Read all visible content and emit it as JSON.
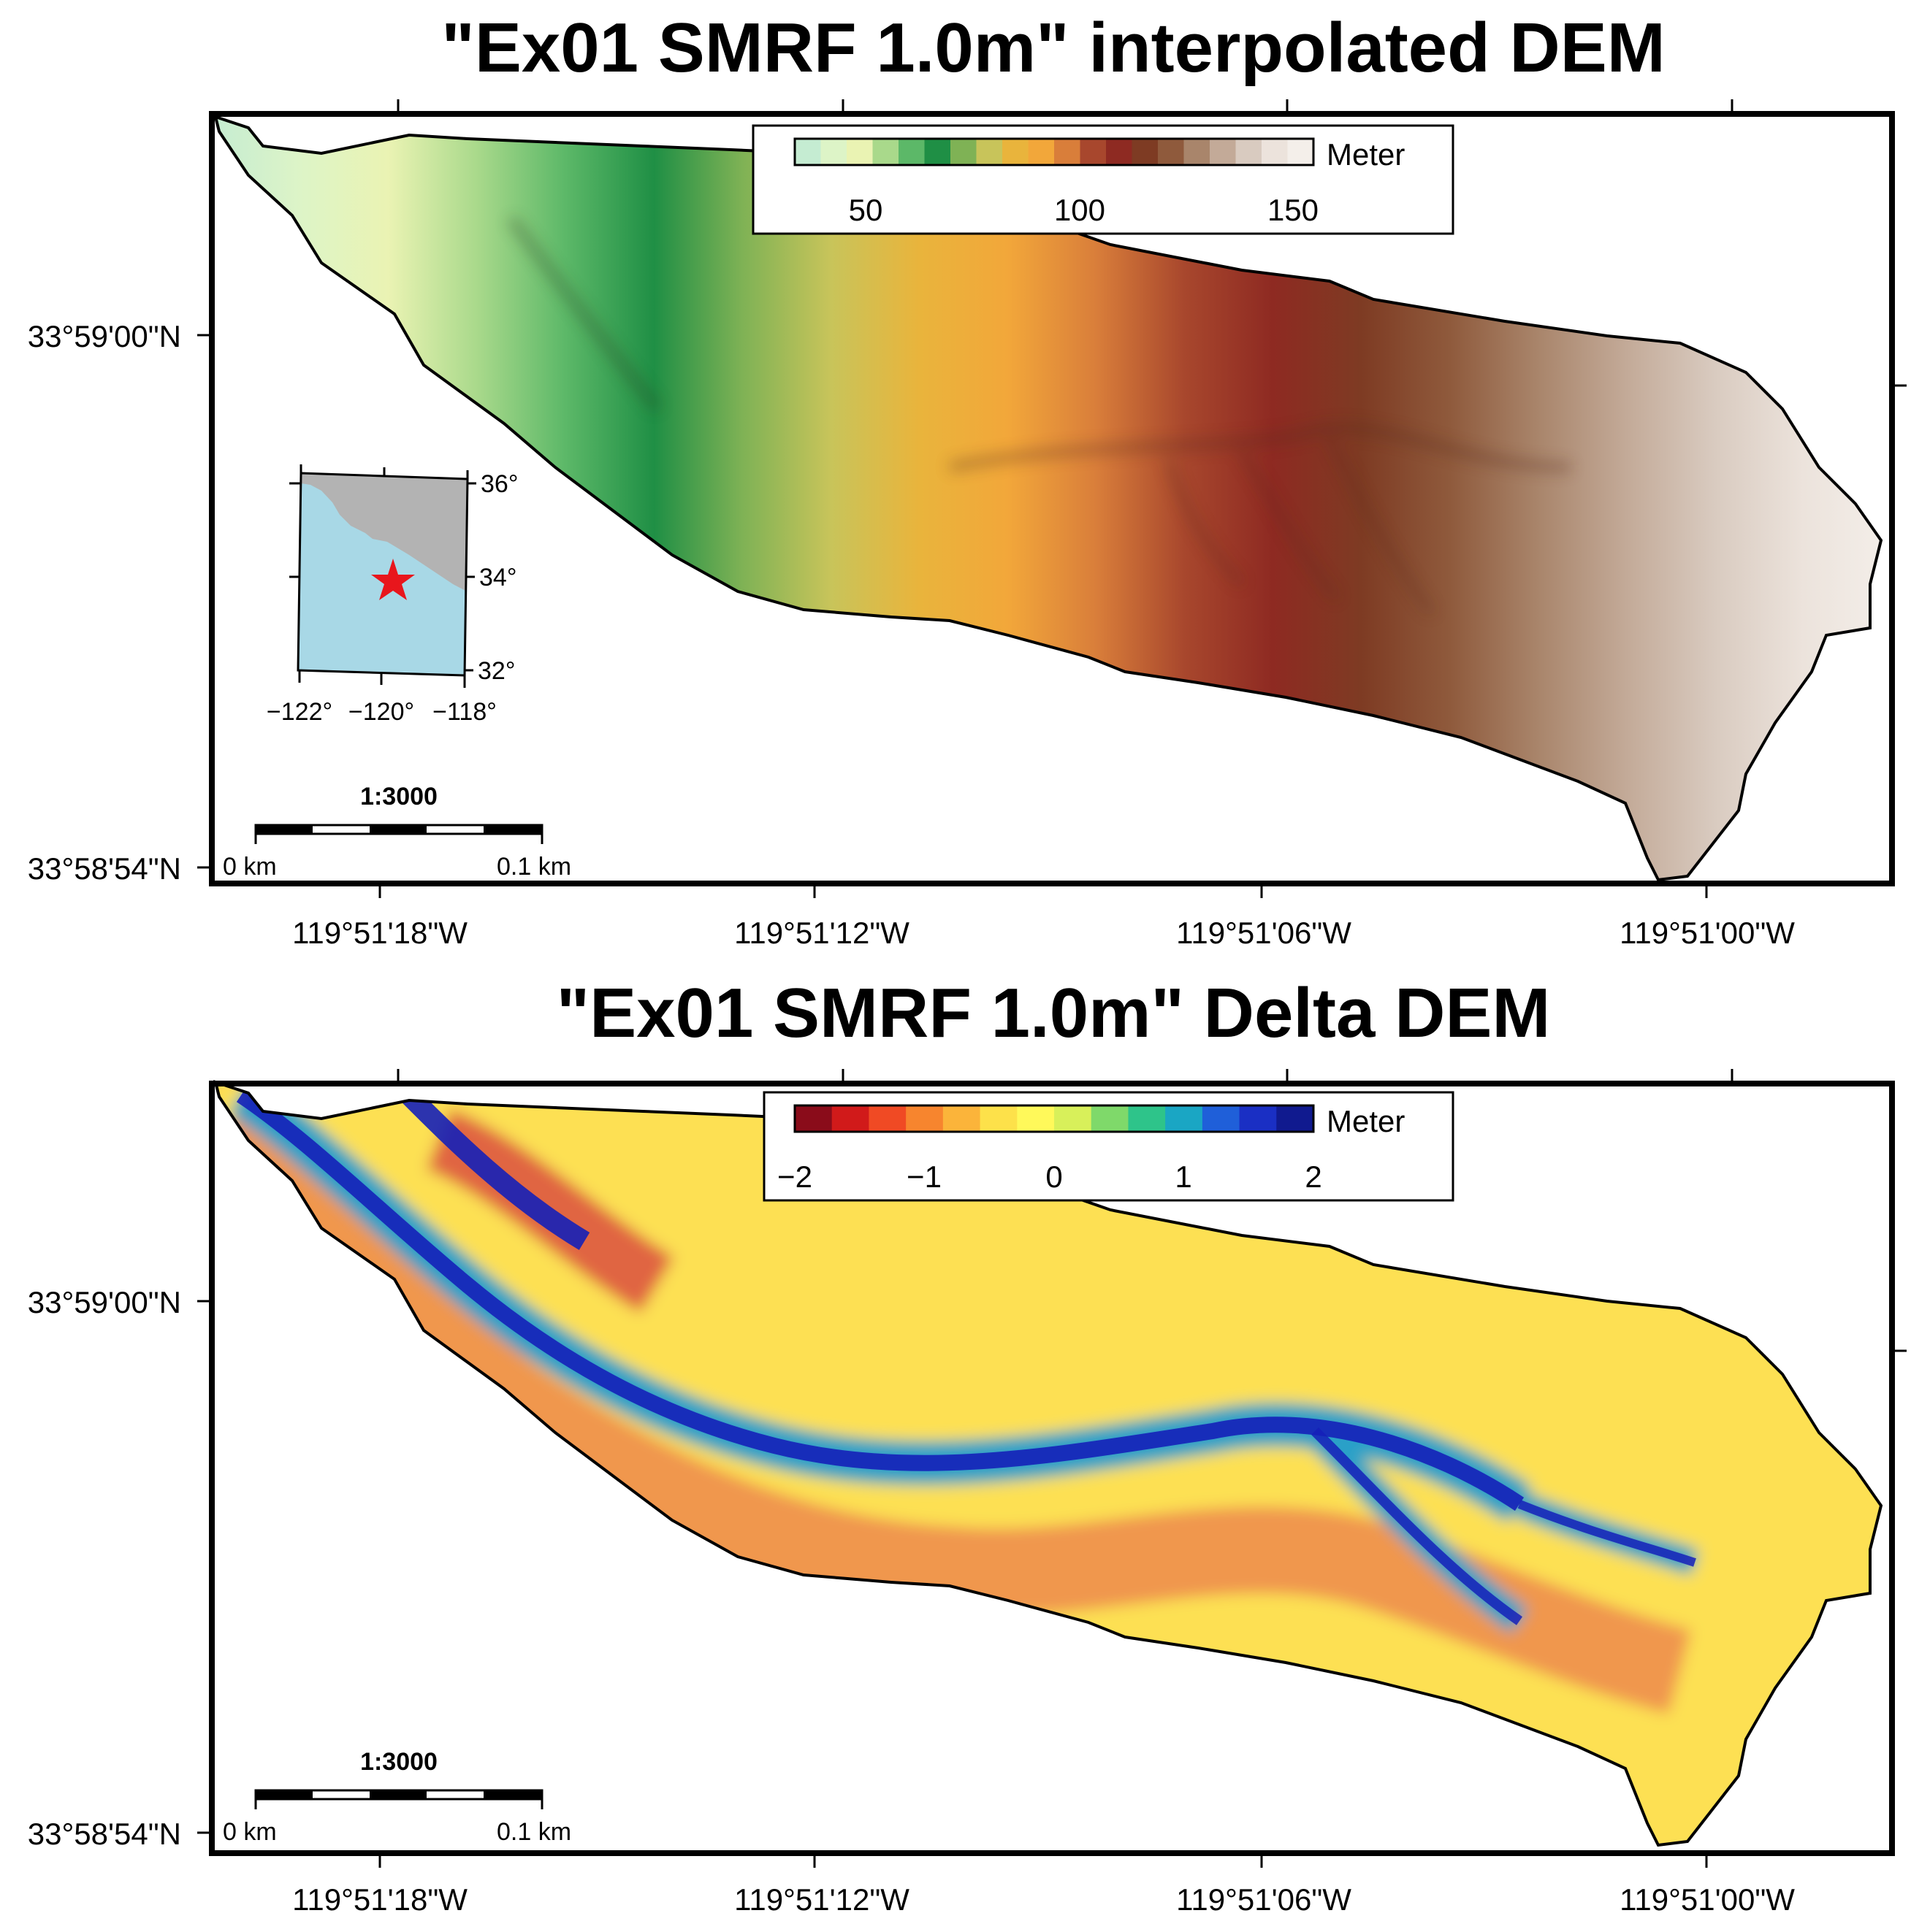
{
  "maps": [
    {
      "title": "\"Ex01 SMRF 1.0m\" interpolated DEM",
      "colorbar": {
        "label": "Meter",
        "ticks": [
          "50",
          "100",
          "150"
        ],
        "colors": [
          "#c5ecd2",
          "#ddf4c7",
          "#eaf3b3",
          "#a9d98b",
          "#5cb868",
          "#1f8f45",
          "#7fb255",
          "#c8c45a",
          "#e9b43c",
          "#f2a73a",
          "#d97e3a",
          "#a8472d",
          "#8e2a22",
          "#7e3b23",
          "#8f5a3c",
          "#a9856b",
          "#c3aa98",
          "#d9cbc0",
          "#ece3dc",
          "#f4efea"
        ]
      },
      "inset": {
        "lat_ticks": [
          "36°",
          "34°",
          "32°"
        ],
        "lon_ticks": [
          "−122°",
          "−120°",
          "−118°"
        ],
        "land_color": "#b3b3b3",
        "water_color": "#a8d8e6",
        "marker_color": "#e8161c"
      },
      "scale": {
        "ratio": "1:3000",
        "start": "0 km",
        "end": "0.1 km"
      },
      "lat_labels": [
        "33°59'00\"N",
        "33°58'54\"N"
      ],
      "lon_labels": [
        "119°51'18\"W",
        "119°51'12\"W",
        "119°51'06\"W",
        "119°51'00\"W"
      ]
    },
    {
      "title": "\"Ex01 SMRF 1.0m\" Delta DEM",
      "colorbar": {
        "label": "Meter",
        "ticks": [
          "−2",
          "−1",
          "0",
          "1",
          "2"
        ],
        "colors": [
          "#8a0c1a",
          "#d11a1a",
          "#f04a24",
          "#f7852e",
          "#fbb43a",
          "#fde14a",
          "#fff95a",
          "#d8f05a",
          "#7fd96a",
          "#2ec48a",
          "#1aa6c4",
          "#1f5fd9",
          "#1a2fc4",
          "#101a8f"
        ]
      },
      "scale": {
        "ratio": "1:3000",
        "start": "0 km",
        "end": "0.1 km"
      },
      "lat_labels": [
        "33°59'00\"N",
        "33°58'54\"N"
      ],
      "lon_labels": [
        "119°51'18\"W",
        "119°51'12\"W",
        "119°51'06\"W",
        "119°51'00\"W"
      ]
    }
  ]
}
